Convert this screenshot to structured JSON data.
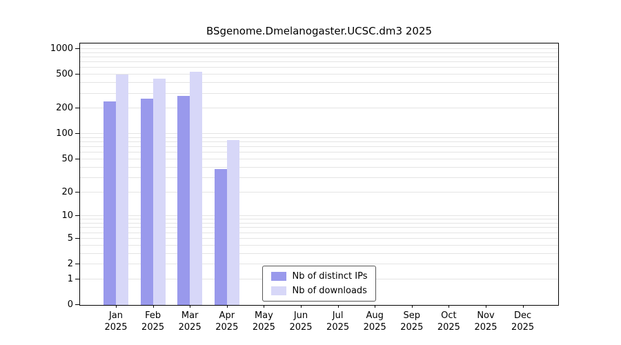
{
  "title": "BSgenome.Dmelanogaster.UCSC.dm3 2025",
  "chart_data": {
    "type": "bar",
    "title": "BSgenome.Dmelanogaster.UCSC.dm3 2025",
    "xlabel": "",
    "ylabel": "",
    "yscale": "log1p",
    "ylim": [
      0,
      1160
    ],
    "yticks": [
      0,
      1,
      2,
      5,
      10,
      20,
      50,
      100,
      200,
      500,
      1000
    ],
    "grid": "horizontal-minor-log",
    "legend_position": "lower center inside",
    "categories": [
      "Jan 2025",
      "Feb 2025",
      "Mar 2025",
      "Apr 2025",
      "May 2025",
      "Jun 2025",
      "Jul 2025",
      "Aug 2025",
      "Sep 2025",
      "Oct 2025",
      "Nov 2025",
      "Dec 2025"
    ],
    "series": [
      {
        "name": "Nb of distinct IPs",
        "color": "#9999ec",
        "values": [
          240,
          260,
          280,
          38,
          0,
          0,
          0,
          0,
          0,
          0,
          0,
          0
        ]
      },
      {
        "name": "Nb of downloads",
        "color": "#d7d7f8",
        "values": [
          500,
          450,
          540,
          85,
          0,
          0,
          0,
          0,
          0,
          0,
          0,
          0
        ]
      }
    ]
  }
}
